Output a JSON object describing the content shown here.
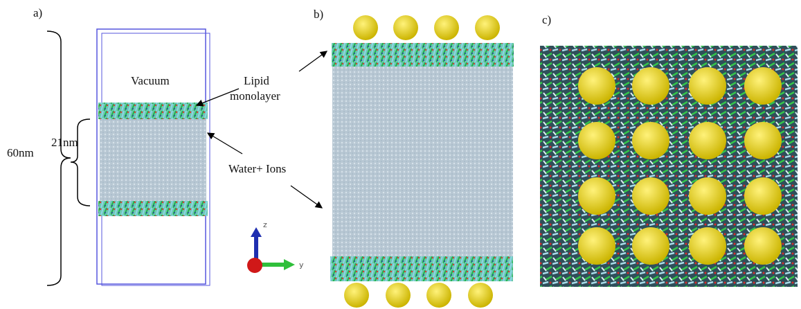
{
  "panel_labels": {
    "a": "a)",
    "b": "b)",
    "c": "c)"
  },
  "annotations": {
    "vacuum": "Vacuum",
    "lipid": [
      "Lipid",
      "monolayer"
    ],
    "water": "Water+ Ions",
    "box_height": "60nm",
    "water_height": "21nm"
  },
  "axes": {
    "z": "z",
    "y": "y"
  }
}
